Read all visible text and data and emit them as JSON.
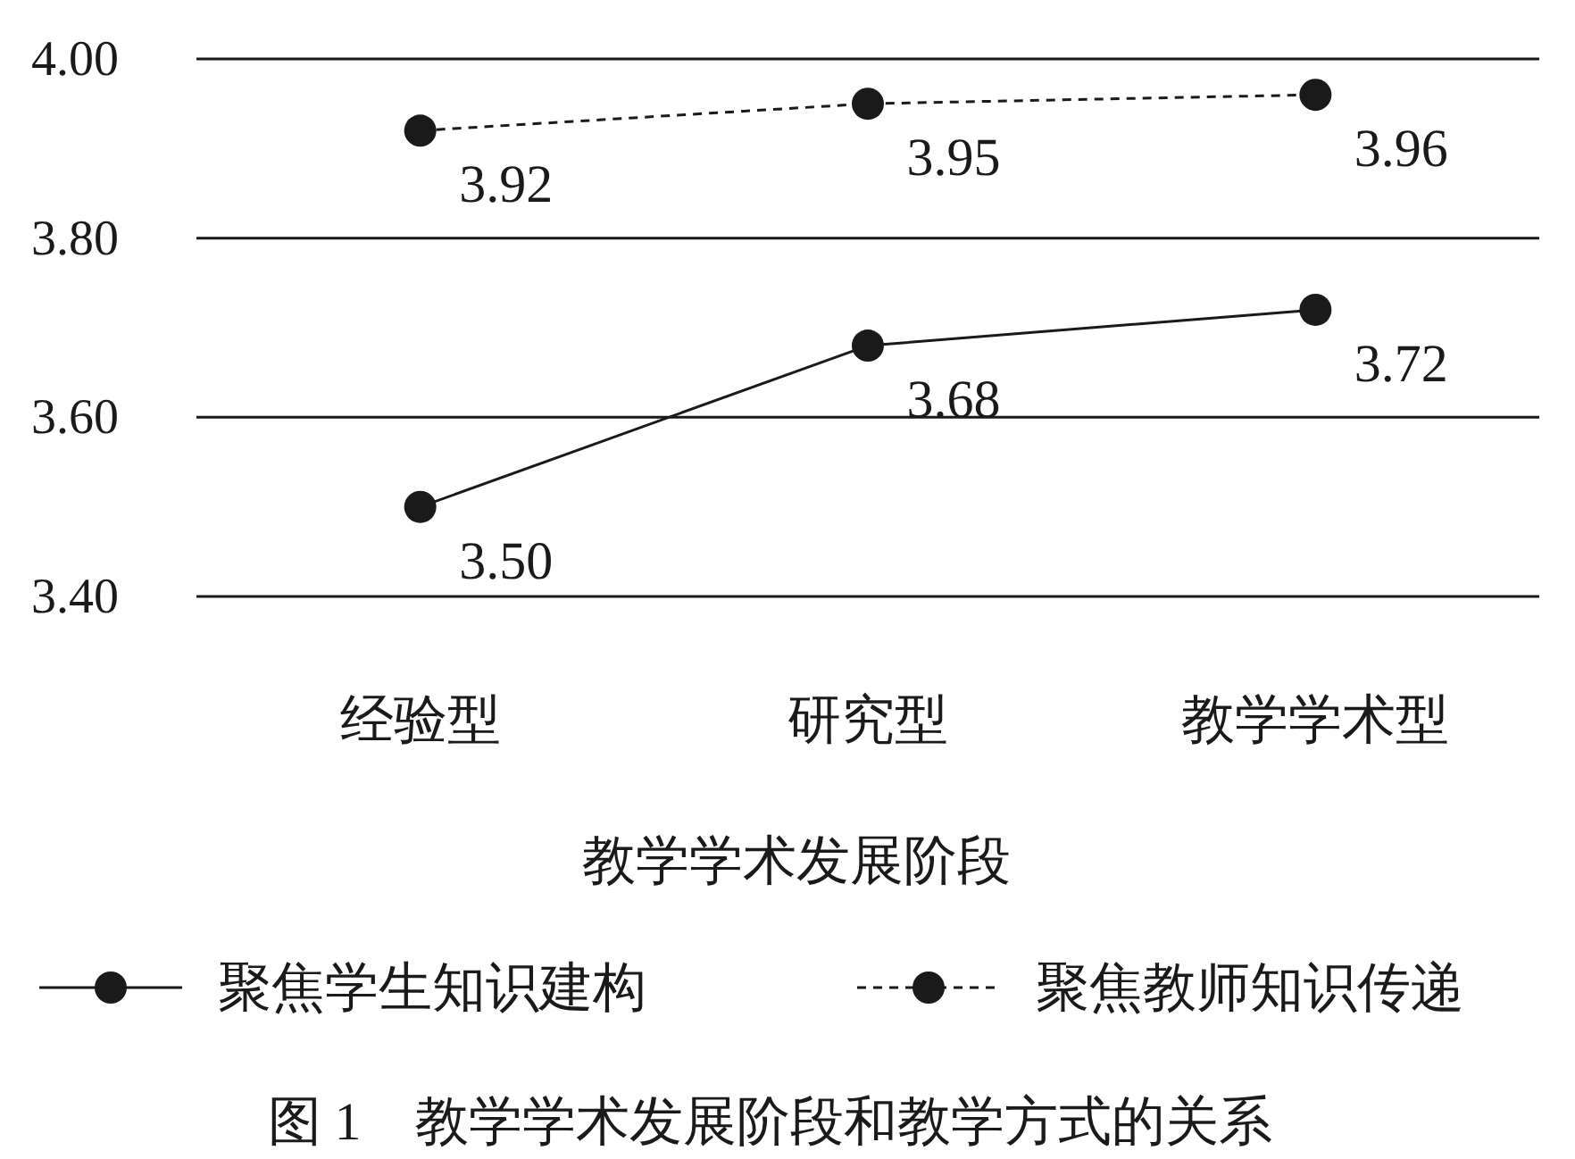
{
  "chart_data": {
    "type": "line",
    "xlabel": "教学学术发展阶段",
    "categories": [
      "经验型",
      "研究型",
      "教学学术型"
    ],
    "series": [
      {
        "name": "聚焦学生知识建构",
        "color": "#1a1a1a",
        "line_style": "solid",
        "values": [
          3.5,
          3.68,
          3.72
        ],
        "value_labels": [
          "3.50",
          "3.68",
          "3.72"
        ]
      },
      {
        "name": "聚焦教师知识传递",
        "color": "#1a1a1a",
        "line_style": "dashed",
        "values": [
          3.92,
          3.95,
          3.96
        ],
        "value_labels": [
          "3.92",
          "3.95",
          "3.96"
        ]
      }
    ],
    "ylim": [
      3.4,
      4.0
    ],
    "yticks": [
      {
        "value": 3.4,
        "label": "3.40"
      },
      {
        "value": 3.6,
        "label": "3.60"
      },
      {
        "value": 3.8,
        "label": "3.80"
      },
      {
        "value": 4.0,
        "label": "4.00"
      }
    ],
    "grid": "y",
    "marker": "circle",
    "legend": "bottom",
    "annotations": [
      "图 1　教学学术发展阶段和教学方式的关系"
    ]
  }
}
